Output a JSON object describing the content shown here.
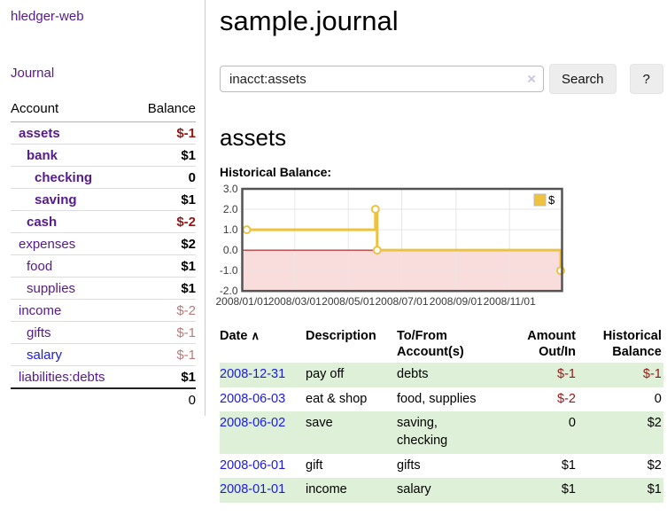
{
  "app": {
    "title": "hledger-web"
  },
  "sidebar": {
    "journal_link": "Journal",
    "accounts": {
      "headers": {
        "account": "Account",
        "balance": "Balance"
      },
      "rows": [
        {
          "label": "assets",
          "depth": 1,
          "bold": true,
          "balance": "$-1",
          "balance_bold": true
        },
        {
          "label": "bank",
          "depth": 2,
          "bold": true,
          "balance": "$1",
          "balance_bold": true
        },
        {
          "label": "checking",
          "depth": 3,
          "bold": true,
          "balance": "0",
          "balance_bold": true
        },
        {
          "label": "saving",
          "depth": 3,
          "bold": true,
          "balance": "$1",
          "balance_bold": true
        },
        {
          "label": "cash",
          "depth": 2,
          "bold": true,
          "balance": "$-2",
          "balance_bold": true
        },
        {
          "label": "expenses",
          "depth": 1,
          "bold": false,
          "balance": "$2",
          "balance_bold": true
        },
        {
          "label": "food",
          "depth": 2,
          "bold": false,
          "balance": "$1",
          "balance_bold": true
        },
        {
          "label": "supplies",
          "depth": 2,
          "bold": false,
          "balance": "$1",
          "balance_bold": true
        },
        {
          "label": "income",
          "depth": 1,
          "bold": false,
          "balance": "$-2",
          "balance_bold": false
        },
        {
          "label": "gifts",
          "depth": 2,
          "bold": false,
          "balance": "$-1",
          "balance_bold": false
        },
        {
          "label": "salary",
          "depth": 2,
          "bold": false,
          "balance": "$-1",
          "balance_bold": false,
          "unvisited": true
        },
        {
          "label": "liabilities:debts",
          "depth": 1,
          "bold": false,
          "balance": "$1",
          "balance_bold": true
        }
      ],
      "total": "0"
    }
  },
  "main": {
    "title": "sample.journal",
    "search": {
      "value": "inacct:assets",
      "clear_icon": "×",
      "search_button": "Search",
      "help_button": "?"
    },
    "account_heading": "assets",
    "chart_heading": "Historical Balance:"
  },
  "chart_data": {
    "type": "line",
    "step": true,
    "title": "Historical Balance:",
    "series": [
      {
        "name": "$",
        "color": "#edc240",
        "points": [
          [
            "2008-01-01",
            1
          ],
          [
            "2008-06-01",
            2
          ],
          [
            "2008-06-03",
            0
          ],
          [
            "2008-12-31",
            -1
          ]
        ]
      }
    ],
    "x_range": [
      "2008-01-01",
      "2008-12-31"
    ],
    "ylim": [
      -2,
      3
    ],
    "x_tick_labels": [
      "2008/01/01",
      "2008/03/01",
      "2008/05/01",
      "2008/07/01",
      "2008/09/01",
      "2008/11/01"
    ],
    "y_tick_labels": [
      "3.0",
      "2.0",
      "1.0",
      "0.0",
      "-1.0",
      "-2.0"
    ],
    "grid": true,
    "legend": {
      "position": "top-right",
      "label": "$"
    },
    "colors": {
      "negative_region": "#f9dcdc",
      "zero_line": "#a40000",
      "grid": "#e6e6e6",
      "border": "#545454",
      "tick_text": "#3a3a3a"
    }
  },
  "register": {
    "headers": {
      "date": "Date",
      "sort_icon": "∧",
      "description": "Description",
      "accounts": "To/From Account(s)",
      "amount": "Amount Out/In",
      "balance": "Historical Balance"
    },
    "rows": [
      {
        "date": "2008-12-31",
        "description": "pay off",
        "accounts": "debts",
        "amount": "$-1",
        "balance": "$-1"
      },
      {
        "date": "2008-06-03",
        "description": "eat & shop",
        "accounts": "food, supplies",
        "amount": "$-2",
        "balance": "0"
      },
      {
        "date": "2008-06-02",
        "description": "save",
        "accounts": "saving,\nchecking",
        "amount": "0",
        "balance": "$2"
      },
      {
        "date": "2008-06-01",
        "description": "gift",
        "accounts": "gifts",
        "amount": "$1",
        "balance": "$2"
      },
      {
        "date": "2008-01-01",
        "description": "income",
        "accounts": "salary",
        "amount": "$1",
        "balance": "$1"
      }
    ]
  }
}
